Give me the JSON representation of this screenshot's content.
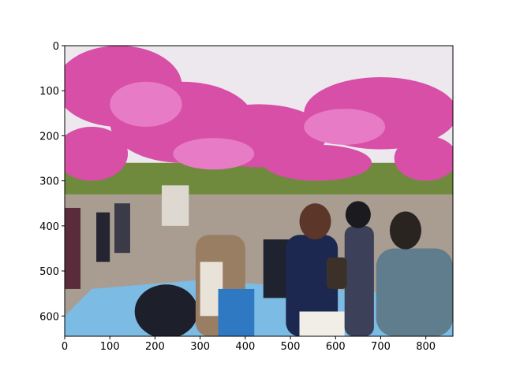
{
  "chart_data": {
    "type": "image",
    "xlim": [
      0,
      860
    ],
    "ylim": [
      645,
      0
    ],
    "xticks": [
      0,
      100,
      200,
      300,
      400,
      500,
      600,
      700,
      800
    ],
    "yticks": [
      0,
      100,
      200,
      300,
      400,
      500,
      600
    ]
  }
}
